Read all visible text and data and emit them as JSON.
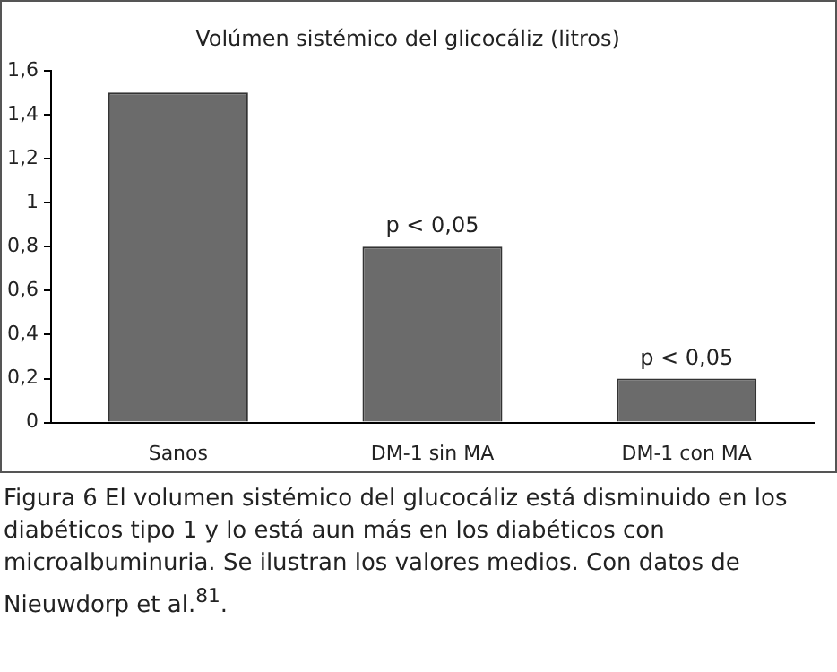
{
  "chart_data": {
    "type": "bar",
    "title": "Volúmen sistémico del glicocáliz (litros)",
    "categories": [
      "Sanos",
      "DM-1 sin MA",
      "DM-1 con MA"
    ],
    "values": [
      1.5,
      0.8,
      0.2
    ],
    "color": "#6b6b6b",
    "ylim": [
      0,
      1.6
    ],
    "yticks": [
      0,
      {
        "value": 0.2,
        "label": "0,2"
      },
      {
        "value": 0.4,
        "label": "0,4"
      },
      {
        "value": 0.6,
        "label": "0,6"
      },
      {
        "value": 0.8,
        "label": "0,8"
      },
      1,
      {
        "value": 1.2,
        "label": "1,2"
      },
      {
        "value": 1.4,
        "label": "1,4"
      },
      {
        "value": 1.6,
        "label": "1,6"
      }
    ],
    "grid": false,
    "legend": false,
    "annotations": [
      {
        "text": "p < 0,05",
        "x": "DM-1 sin MA",
        "y": 0.8
      },
      {
        "text": "p < 0,05",
        "x": "DM-1 con MA",
        "y": 0.2
      },
      "Figura 6   El volumen sistémico del glucocáliz está disminuido en los diabéticos tipo 1 y lo está aun más en los diabéticos con microalbuminuria. Se ilustran los valores medios. Con datos de Nieuwdorp et al.$^{81}$."
    ]
  }
}
